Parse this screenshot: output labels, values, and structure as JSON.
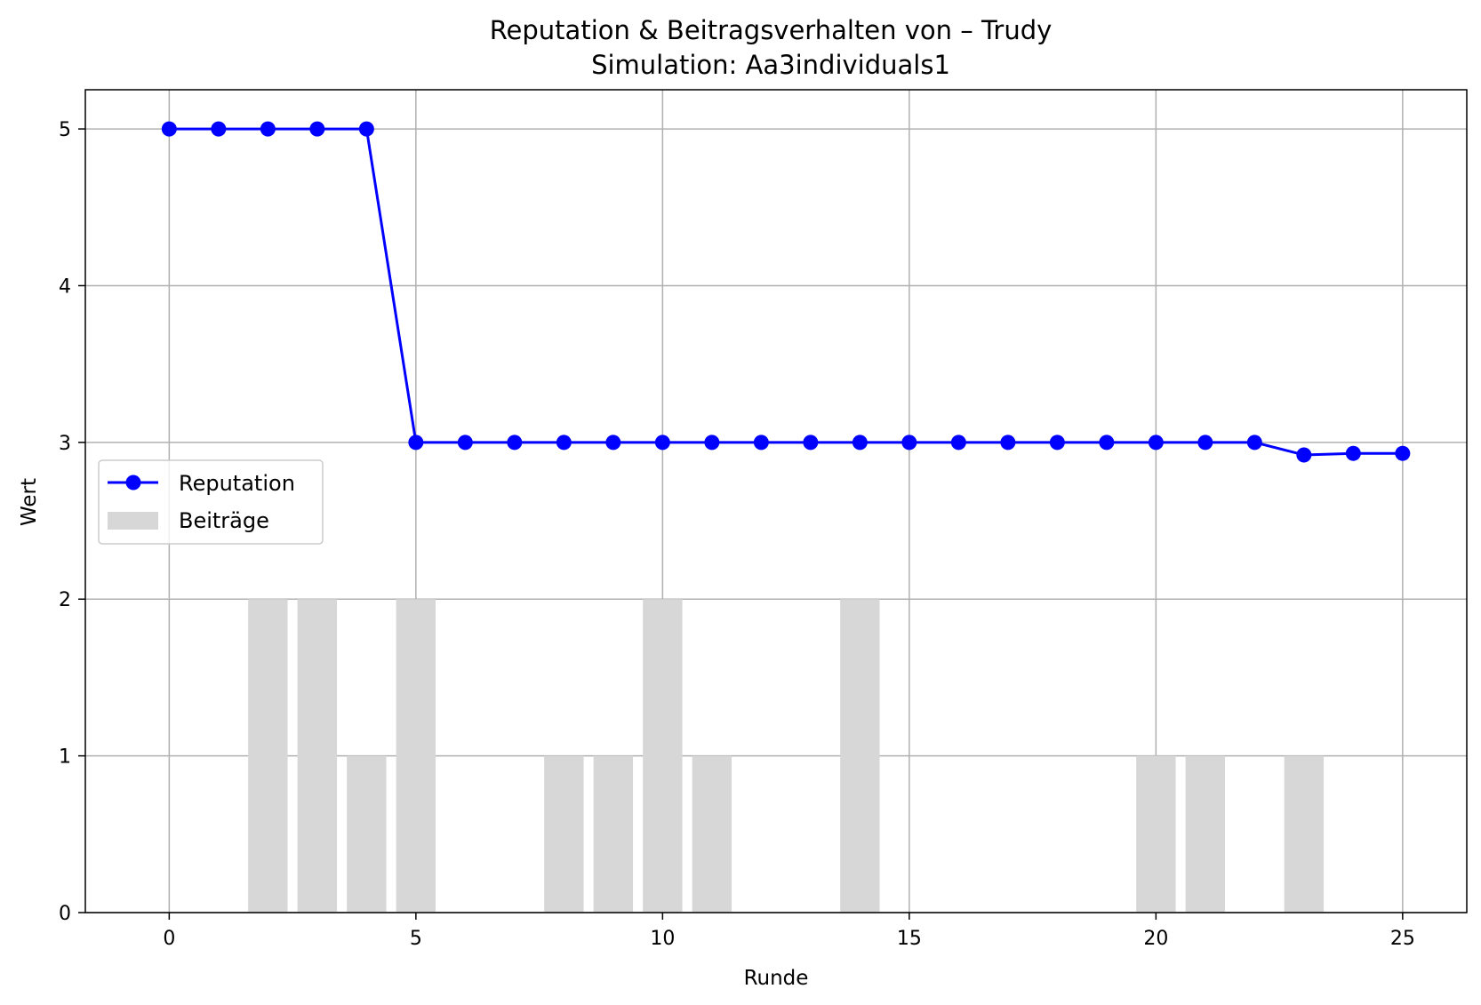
{
  "chart_data": {
    "type": "line",
    "title": "Reputation & Beitragsverhalten von – Trudy",
    "subtitle": "Simulation: Aa3individuals1",
    "xlabel": "Runde",
    "ylabel": "Wert",
    "xlim": [
      -1.7,
      26.3
    ],
    "ylim": [
      0,
      5.25
    ],
    "xticks": [
      0,
      5,
      10,
      15,
      20,
      25
    ],
    "yticks": [
      0,
      1,
      2,
      3,
      4,
      5
    ],
    "grid": true,
    "legend_position": "center-left",
    "series": [
      {
        "name": "Reputation",
        "type": "line",
        "marker": "circle",
        "color": "#0000ff",
        "x": [
          0,
          1,
          2,
          3,
          4,
          5,
          6,
          7,
          8,
          9,
          10,
          11,
          12,
          13,
          14,
          15,
          16,
          17,
          18,
          19,
          20,
          21,
          22,
          23,
          24,
          25
        ],
        "values": [
          5,
          5,
          5,
          5,
          5,
          3,
          3,
          3,
          3,
          3,
          3,
          3,
          3,
          3,
          3,
          3,
          3,
          3,
          3,
          3,
          3,
          3,
          3,
          2.92,
          2.93,
          2.93
        ]
      },
      {
        "name": "Beiträge",
        "type": "bar",
        "color": "#d7d7d7",
        "x": [
          0,
          1,
          2,
          3,
          4,
          5,
          6,
          7,
          8,
          9,
          10,
          11,
          12,
          13,
          14,
          15,
          16,
          17,
          18,
          19,
          20,
          21,
          22,
          23,
          24,
          25
        ],
        "values": [
          0,
          0,
          2,
          2,
          1,
          2,
          0,
          0,
          1,
          1,
          2,
          1,
          0,
          0,
          2,
          0,
          0,
          0,
          0,
          0,
          1,
          1,
          0,
          1,
          0,
          0
        ]
      }
    ]
  }
}
